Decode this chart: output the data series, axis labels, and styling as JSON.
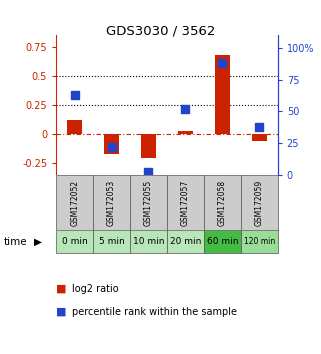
{
  "title": "GDS3030 / 3562",
  "samples": [
    "GSM172052",
    "GSM172053",
    "GSM172055",
    "GSM172057",
    "GSM172058",
    "GSM172059"
  ],
  "time_labels": [
    "0 min",
    "5 min",
    "10 min",
    "20 min",
    "60 min",
    "120 min"
  ],
  "log2_ratio": [
    0.12,
    -0.175,
    -0.21,
    0.022,
    0.68,
    -0.06
  ],
  "percentile_rank": [
    63,
    22,
    2,
    52,
    88,
    38
  ],
  "left_ylim": [
    -0.35,
    0.85
  ],
  "right_ylim": [
    0,
    110
  ],
  "left_yticks": [
    -0.25,
    0.0,
    0.25,
    0.5,
    0.75
  ],
  "right_yticks": [
    0,
    25,
    50,
    75,
    100
  ],
  "left_ytick_labels": [
    "-0.25",
    "0",
    "0.25",
    "0.5",
    "0.75"
  ],
  "right_ytick_labels": [
    "0",
    "25",
    "50",
    "75",
    "100%"
  ],
  "hlines": [
    0.25,
    0.5
  ],
  "bar_color": "#cc2200",
  "dot_color": "#2244cc",
  "zero_line_color": "#cc2200",
  "hline_color": "#000000",
  "left_axis_color": "#cc2200",
  "right_axis_color": "#2244cc",
  "sample_bg_color": "#cccccc",
  "time_bg_colors": [
    "#b8e6b8",
    "#b8e6b8",
    "#b8e6b8",
    "#b8e6b8",
    "#44bb44",
    "#99dd99"
  ],
  "legend_items": [
    {
      "color": "#cc2200",
      "label": "log2 ratio"
    },
    {
      "color": "#2244cc",
      "label": "percentile rank within the sample"
    }
  ]
}
